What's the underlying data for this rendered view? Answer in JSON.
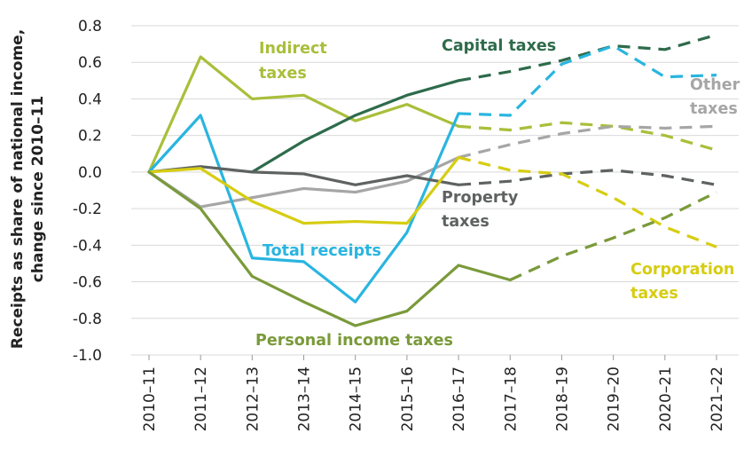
{
  "chart_data": {
    "type": "line",
    "ylabel_line1": "Receipts as share of national income,",
    "ylabel_line2": "change since 2010–11",
    "categories": [
      "2010–11",
      "2011–12",
      "2012–13",
      "2013–14",
      "2014–15",
      "2015–16",
      "2016–17",
      "2017–18",
      "2018–19",
      "2019–20",
      "2020–21",
      "2021–22"
    ],
    "yticks": [
      "0.8",
      "0.6",
      "0.4",
      "0.2",
      "0.0",
      "-0.2",
      "-0.4",
      "-0.6",
      "-0.8",
      "-1.0"
    ],
    "ylim": [
      -1.0,
      0.8
    ],
    "grid": true,
    "legend": "none (series labelled directly on chart)",
    "forecast_style": "dashed from 2016–17 onward",
    "series": [
      {
        "name": "Indirect taxes",
        "color": "#a8bf3a",
        "values": [
          0,
          0.63,
          0.4,
          0.42,
          0.28,
          0.37,
          0.25,
          0.23,
          0.27,
          0.25,
          0.2,
          0.12
        ],
        "dashed_from": 6
      },
      {
        "name": "Capital taxes",
        "color": "#2e6b4b",
        "values": [
          null,
          null,
          0,
          0.17,
          0.31,
          0.42,
          0.5,
          0.55,
          0.61,
          0.69,
          0.67,
          0.75
        ],
        "dashed_from": 6
      },
      {
        "name": "Other taxes",
        "color": "#a6a6a6",
        "values": [
          0,
          -0.19,
          -0.14,
          -0.09,
          -0.11,
          -0.05,
          0.08,
          0.15,
          0.21,
          0.25,
          0.24,
          0.25
        ],
        "dashed_from": 6
      },
      {
        "name": "Total receipts",
        "color": "#29b5e0",
        "values": [
          0,
          0.31,
          -0.47,
          -0.49,
          -0.71,
          -0.33,
          0.32,
          0.31,
          0.59,
          0.69,
          0.52,
          0.53
        ],
        "dashed_from": 6
      },
      {
        "name": "Property taxes",
        "color": "#5e6361",
        "values": [
          0,
          0.03,
          0,
          -0.01,
          -0.07,
          -0.02,
          -0.07,
          -0.05,
          -0.01,
          0.01,
          -0.02,
          -0.07
        ],
        "dashed_from": 6
      },
      {
        "name": "Corporation taxes",
        "color": "#d6cd12",
        "values": [
          0,
          0.02,
          -0.16,
          -0.28,
          -0.27,
          -0.28,
          0.08,
          0.01,
          -0.01,
          -0.14,
          -0.3,
          -0.41
        ],
        "dashed_from": 6
      },
      {
        "name": "Personal income taxes",
        "color": "#7a9a3a",
        "values": [
          0,
          -0.2,
          -0.57,
          -0.71,
          -0.84,
          -0.76,
          -0.51,
          -0.59,
          -0.46,
          -0.36,
          -0.25,
          -0.11
        ],
        "dashed_from": 7
      }
    ],
    "annotations": [
      {
        "series": "Indirect taxes",
        "lines": [
          "Indirect",
          "taxes"
        ]
      },
      {
        "series": "Capital taxes",
        "lines": [
          "Capital taxes"
        ]
      },
      {
        "series": "Other taxes",
        "lines": [
          "Other",
          "taxes"
        ]
      },
      {
        "series": "Property taxes",
        "lines": [
          "Property",
          "taxes"
        ]
      },
      {
        "series": "Total receipts",
        "lines": [
          "Total receipts"
        ]
      },
      {
        "series": "Corporation taxes",
        "lines": [
          "Corporation",
          "taxes"
        ]
      },
      {
        "series": "Personal income taxes",
        "lines": [
          "Personal income taxes"
        ]
      }
    ]
  }
}
